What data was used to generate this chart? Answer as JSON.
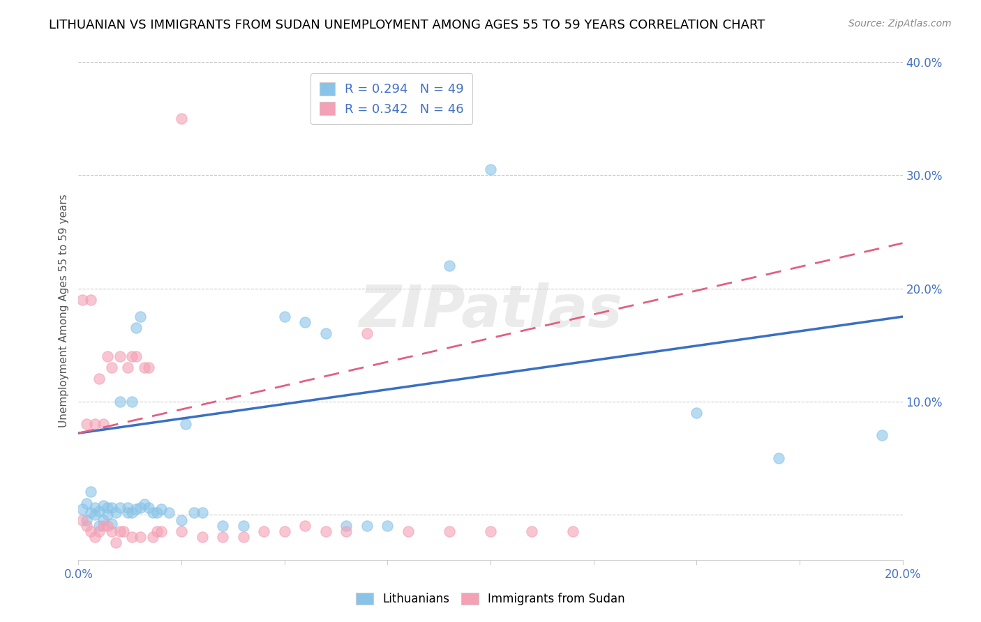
{
  "title": "LITHUANIAN VS IMMIGRANTS FROM SUDAN UNEMPLOYMENT AMONG AGES 55 TO 59 YEARS CORRELATION CHART",
  "source": "Source: ZipAtlas.com",
  "ylabel": "Unemployment Among Ages 55 to 59 years",
  "xlim": [
    0.0,
    0.2
  ],
  "ylim": [
    -0.04,
    0.4
  ],
  "xticks": [
    0.0,
    0.025,
    0.05,
    0.075,
    0.1,
    0.125,
    0.15,
    0.175,
    0.2
  ],
  "xtick_labels": [
    "0.0%",
    "",
    "",
    "",
    "",
    "",
    "",
    "",
    "20.0%"
  ],
  "yticks": [
    0.0,
    0.1,
    0.2,
    0.3,
    0.4
  ],
  "ytick_labels_right": [
    "",
    "10.0%",
    "20.0%",
    "30.0%",
    "40.0%"
  ],
  "color_blue": "#89c4e8",
  "color_pink": "#f4a0b5",
  "legend_r1": "R = 0.294",
  "legend_n1": "N = 49",
  "legend_r2": "R = 0.342",
  "legend_n2": "N = 46",
  "blue_scatter": [
    [
      0.001,
      0.005
    ],
    [
      0.002,
      -0.005
    ],
    [
      0.002,
      0.01
    ],
    [
      0.003,
      0.002
    ],
    [
      0.003,
      0.02
    ],
    [
      0.004,
      0.0
    ],
    [
      0.004,
      0.006
    ],
    [
      0.005,
      -0.01
    ],
    [
      0.005,
      0.003
    ],
    [
      0.006,
      -0.005
    ],
    [
      0.006,
      0.008
    ],
    [
      0.007,
      0.0
    ],
    [
      0.007,
      0.006
    ],
    [
      0.008,
      -0.008
    ],
    [
      0.008,
      0.006
    ],
    [
      0.009,
      0.002
    ],
    [
      0.01,
      0.006
    ],
    [
      0.01,
      0.1
    ],
    [
      0.012,
      0.002
    ],
    [
      0.012,
      0.006
    ],
    [
      0.013,
      0.002
    ],
    [
      0.013,
      0.1
    ],
    [
      0.014,
      0.005
    ],
    [
      0.014,
      0.165
    ],
    [
      0.015,
      0.006
    ],
    [
      0.015,
      0.175
    ],
    [
      0.016,
      0.009
    ],
    [
      0.017,
      0.006
    ],
    [
      0.018,
      0.002
    ],
    [
      0.019,
      0.002
    ],
    [
      0.02,
      0.005
    ],
    [
      0.022,
      0.002
    ],
    [
      0.025,
      -0.005
    ],
    [
      0.026,
      0.08
    ],
    [
      0.028,
      0.002
    ],
    [
      0.03,
      0.002
    ],
    [
      0.035,
      -0.01
    ],
    [
      0.04,
      -0.01
    ],
    [
      0.05,
      0.175
    ],
    [
      0.055,
      0.17
    ],
    [
      0.06,
      0.16
    ],
    [
      0.065,
      -0.01
    ],
    [
      0.07,
      -0.01
    ],
    [
      0.075,
      -0.01
    ],
    [
      0.09,
      0.22
    ],
    [
      0.1,
      0.305
    ],
    [
      0.15,
      0.09
    ],
    [
      0.17,
      0.05
    ],
    [
      0.195,
      0.07
    ]
  ],
  "pink_scatter": [
    [
      0.001,
      -0.005
    ],
    [
      0.001,
      0.19
    ],
    [
      0.002,
      -0.01
    ],
    [
      0.002,
      0.08
    ],
    [
      0.003,
      -0.015
    ],
    [
      0.003,
      0.19
    ],
    [
      0.004,
      -0.02
    ],
    [
      0.004,
      0.08
    ],
    [
      0.005,
      -0.015
    ],
    [
      0.005,
      0.12
    ],
    [
      0.006,
      -0.01
    ],
    [
      0.006,
      0.08
    ],
    [
      0.007,
      -0.01
    ],
    [
      0.007,
      0.14
    ],
    [
      0.008,
      -0.015
    ],
    [
      0.008,
      0.13
    ],
    [
      0.009,
      -0.025
    ],
    [
      0.01,
      -0.015
    ],
    [
      0.01,
      0.14
    ],
    [
      0.011,
      -0.015
    ],
    [
      0.012,
      0.13
    ],
    [
      0.013,
      -0.02
    ],
    [
      0.013,
      0.14
    ],
    [
      0.014,
      0.14
    ],
    [
      0.015,
      -0.02
    ],
    [
      0.016,
      0.13
    ],
    [
      0.017,
      0.13
    ],
    [
      0.018,
      -0.02
    ],
    [
      0.019,
      -0.015
    ],
    [
      0.02,
      -0.015
    ],
    [
      0.025,
      -0.015
    ],
    [
      0.025,
      0.35
    ],
    [
      0.03,
      -0.02
    ],
    [
      0.035,
      -0.02
    ],
    [
      0.04,
      -0.02
    ],
    [
      0.045,
      -0.015
    ],
    [
      0.05,
      -0.015
    ],
    [
      0.055,
      -0.01
    ],
    [
      0.06,
      -0.015
    ],
    [
      0.065,
      -0.015
    ],
    [
      0.07,
      0.16
    ],
    [
      0.08,
      -0.015
    ],
    [
      0.09,
      -0.015
    ],
    [
      0.1,
      -0.015
    ],
    [
      0.11,
      -0.015
    ],
    [
      0.12,
      -0.015
    ]
  ],
  "blue_line_x": [
    0.0,
    0.2
  ],
  "blue_line_y": [
    0.072,
    0.175
  ],
  "pink_line_x": [
    0.0,
    0.2
  ],
  "pink_line_y": [
    0.072,
    0.24
  ],
  "watermark": "ZIPatlas",
  "title_fontsize": 13,
  "axis_label_fontsize": 11,
  "tick_fontsize": 12,
  "legend_fontsize": 13,
  "dot_size": 120
}
